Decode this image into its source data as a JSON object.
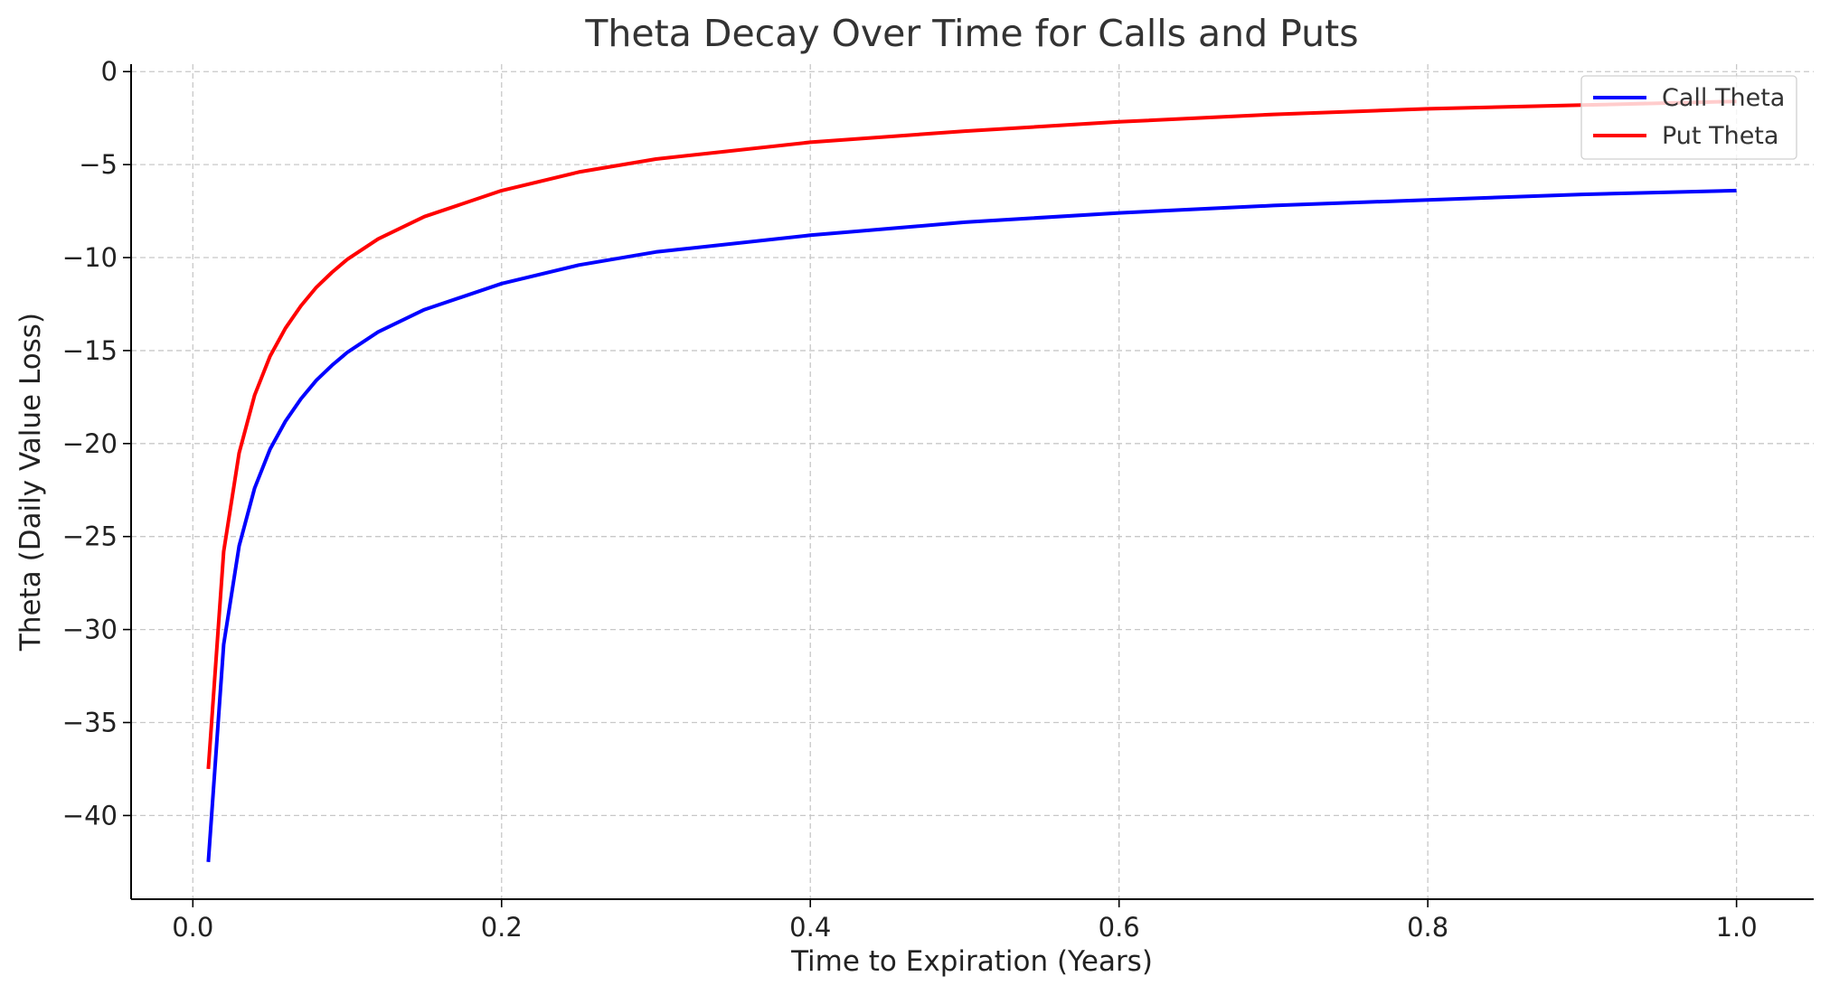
{
  "chart_data": {
    "type": "line",
    "title": "Theta Decay Over Time for Calls and Puts",
    "xlabel": "Time to Expiration (Years)",
    "ylabel": "Theta (Daily Value Loss)",
    "xlim": [
      -0.04,
      1.05
    ],
    "ylim": [
      -44.5,
      0.4
    ],
    "xticks": [
      0.0,
      0.2,
      0.4,
      0.6,
      0.8,
      1.0
    ],
    "xtick_labels": [
      "0.0",
      "0.2",
      "0.4",
      "0.6",
      "0.8",
      "1.0"
    ],
    "yticks": [
      0,
      -5,
      -10,
      -15,
      -20,
      -25,
      -30,
      -35,
      -40
    ],
    "ytick_labels": [
      "0",
      "−5",
      "−10",
      "−15",
      "−20",
      "−25",
      "−30",
      "−35",
      "−40"
    ],
    "grid": true,
    "legend_position": "top-right",
    "x": [
      0.01,
      0.02,
      0.03,
      0.04,
      0.05,
      0.06,
      0.07,
      0.08,
      0.09,
      0.1,
      0.12,
      0.15,
      0.2,
      0.25,
      0.3,
      0.4,
      0.5,
      0.6,
      0.7,
      0.8,
      0.9,
      1.0
    ],
    "series": [
      {
        "name": "Call Theta",
        "color": "#0000ff",
        "values": [
          -42.5,
          -30.8,
          -25.5,
          -22.4,
          -20.3,
          -18.8,
          -17.6,
          -16.6,
          -15.8,
          -15.1,
          -14.0,
          -12.8,
          -11.4,
          -10.4,
          -9.7,
          -8.8,
          -8.1,
          -7.6,
          -7.2,
          -6.9,
          -6.6,
          -6.4
        ]
      },
      {
        "name": "Put Theta",
        "color": "#ff0000",
        "values": [
          -37.5,
          -25.8,
          -20.5,
          -17.4,
          -15.3,
          -13.8,
          -12.6,
          -11.6,
          -10.8,
          -10.1,
          -9.0,
          -7.8,
          -6.4,
          -5.4,
          -4.7,
          -3.8,
          -3.2,
          -2.7,
          -2.3,
          -2.0,
          -1.8,
          -1.6
        ]
      }
    ]
  }
}
